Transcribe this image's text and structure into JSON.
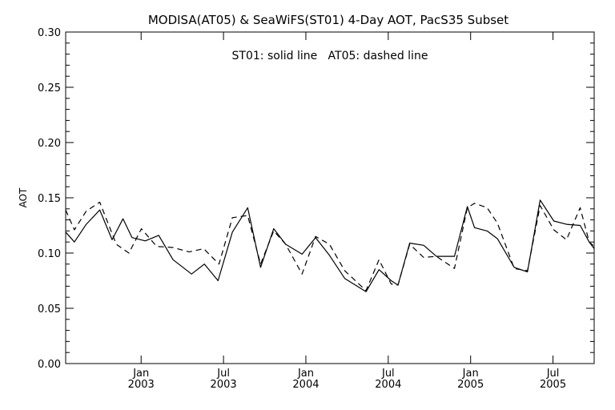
{
  "chart_data": {
    "type": "line",
    "title": "MODISA(AT05) & SeaWiFS(ST01) 4-Day AOT, PacS35 Subset",
    "annotation": "ST01: solid line   AT05: dashed line",
    "xlabel": "",
    "ylabel": "AOT",
    "ylim": [
      0.0,
      0.3
    ],
    "xlim": [
      2002.542,
      2005.75
    ],
    "yticks": [
      "0.00",
      "0.05",
      "0.10",
      "0.15",
      "0.20",
      "0.25",
      "0.30"
    ],
    "xticks": [
      {
        "month": "Jan",
        "year": "2003"
      },
      {
        "month": "Jul",
        "year": "2003"
      },
      {
        "month": "Jan",
        "year": "2004"
      },
      {
        "month": "Jul",
        "year": "2004"
      },
      {
        "month": "Jan",
        "year": "2005"
      },
      {
        "month": "Jul",
        "year": "2005"
      }
    ],
    "grid": false,
    "series": [
      {
        "name": "ST01",
        "style": "solid",
        "color": "#000000",
        "x": [
          2002.542,
          2002.595,
          2002.667,
          2002.749,
          2002.824,
          2002.89,
          2002.945,
          2003.025,
          2003.107,
          2003.194,
          2003.306,
          2003.384,
          2003.467,
          2003.554,
          2003.647,
          2003.725,
          2003.805,
          2003.877,
          2003.977,
          2004.059,
          2004.143,
          2004.236,
          2004.365,
          2004.444,
          2004.518,
          2004.559,
          2004.63,
          2004.715,
          2004.792,
          2004.902,
          2004.98,
          2005.024,
          2005.1,
          2005.163,
          2005.265,
          2005.345,
          2005.422,
          2005.505,
          2005.582,
          2005.665,
          2005.72,
          2005.75
        ],
        "y": [
          0.119,
          0.11,
          0.126,
          0.139,
          0.112,
          0.131,
          0.114,
          0.111,
          0.116,
          0.094,
          0.081,
          0.09,
          0.075,
          0.119,
          0.141,
          0.087,
          0.122,
          0.108,
          0.099,
          0.114,
          0.098,
          0.077,
          0.065,
          0.085,
          0.075,
          0.071,
          0.109,
          0.107,
          0.097,
          0.097,
          0.142,
          0.123,
          0.12,
          0.113,
          0.087,
          0.083,
          0.148,
          0.129,
          0.126,
          0.125,
          0.11,
          0.104
        ]
      },
      {
        "name": "AT05",
        "style": "dashed",
        "color": "#000000",
        "x": [
          2002.542,
          2002.595,
          2002.667,
          2002.749,
          2002.849,
          2002.926,
          2003.002,
          2003.094,
          2003.194,
          2003.292,
          2003.38,
          2003.473,
          2003.554,
          2003.647,
          2003.725,
          2003.805,
          2003.877,
          2003.977,
          2004.059,
          2004.143,
          2004.236,
          2004.365,
          2004.444,
          2004.518,
          2004.559,
          2004.63,
          2004.715,
          2004.792,
          2004.902,
          2004.98,
          2005.024,
          2005.1,
          2005.163,
          2005.265,
          2005.345,
          2005.422,
          2005.505,
          2005.582,
          2005.665,
          2005.72,
          2005.75
        ],
        "y": [
          0.139,
          0.121,
          0.138,
          0.146,
          0.108,
          0.1,
          0.122,
          0.106,
          0.105,
          0.101,
          0.104,
          0.09,
          0.132,
          0.134,
          0.09,
          0.12,
          0.108,
          0.081,
          0.115,
          0.108,
          0.084,
          0.066,
          0.094,
          0.072,
          0.071,
          0.108,
          0.096,
          0.097,
          0.086,
          0.141,
          0.145,
          0.141,
          0.127,
          0.086,
          0.084,
          0.143,
          0.121,
          0.112,
          0.141,
          0.11,
          0.106
        ]
      }
    ]
  }
}
